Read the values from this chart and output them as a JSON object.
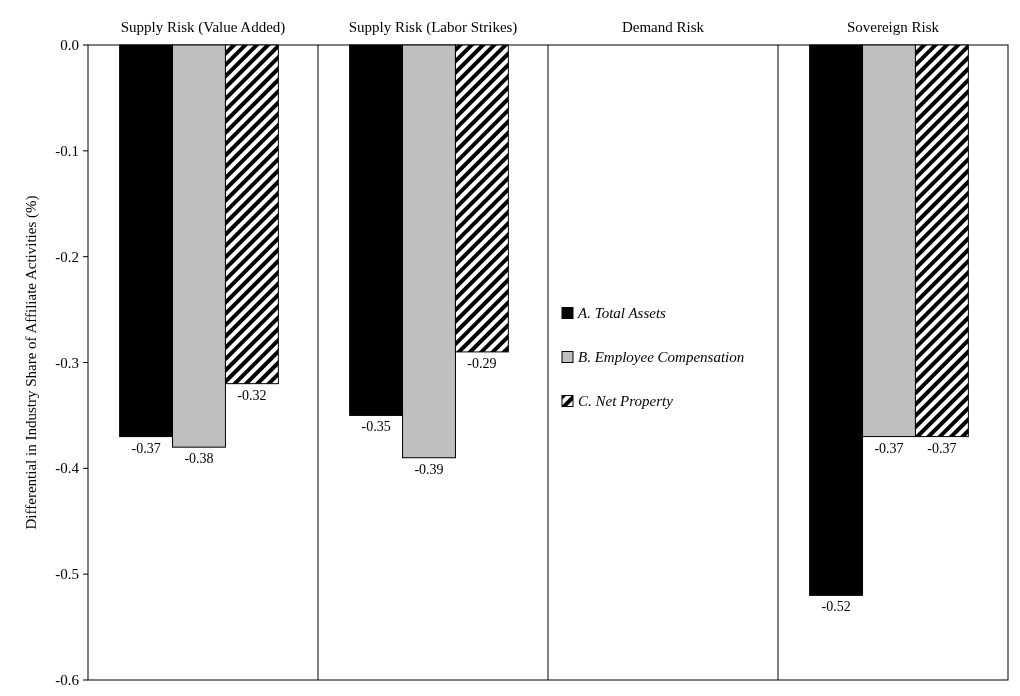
{
  "chart_data": {
    "type": "bar",
    "ylabel": "Differential in Industry Share of Affiliate Activities (%)",
    "categories": [
      "Supply Risk (Value Added)",
      "Supply Risk (Labor Strikes)",
      "Demand Risk",
      "Sovereign Risk"
    ],
    "series": [
      {
        "name": "A. Total Assets",
        "color": "#000000",
        "values": [
          -0.37,
          -0.35,
          null,
          -0.52
        ]
      },
      {
        "name": "B. Employee Compensation",
        "color": "#bfbfbf",
        "values": [
          -0.38,
          -0.39,
          null,
          -0.37
        ]
      },
      {
        "name": "C. Net Property",
        "color": "#000000",
        "values": [
          -0.32,
          -0.29,
          null,
          -0.37
        ]
      }
    ],
    "ylim": [
      -0.6,
      0
    ],
    "yticks": [
      {
        "value": -0.6,
        "label": "-0.6"
      },
      {
        "value": -0.5,
        "label": "-0.5"
      },
      {
        "value": -0.4,
        "label": "-0.4"
      },
      {
        "value": -0.3,
        "label": "-0.3"
      },
      {
        "value": -0.2,
        "label": "-0.2"
      },
      {
        "value": -0.1,
        "label": "-0.1"
      },
      {
        "value": 0,
        "label": "0.0"
      }
    ],
    "data_labels": true,
    "legend": "center",
    "grid": false
  }
}
